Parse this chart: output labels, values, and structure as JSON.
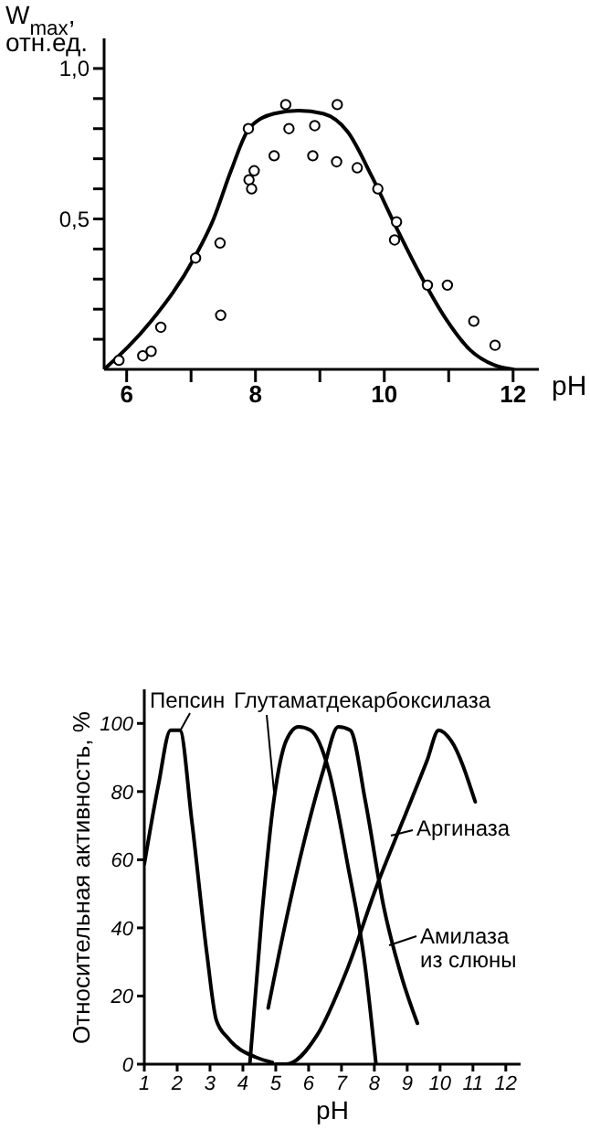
{
  "chart_data": [
    {
      "type": "scatter",
      "xlabel": "pH",
      "ylabel": "W$_{max}$, отн.ед.",
      "xlim": [
        5.65,
        12.4
      ],
      "ylim": [
        0,
        1.1
      ],
      "xticks": [
        6,
        {
          "value": 7,
          "label": null
        },
        8,
        {
          "value": 9,
          "label": null
        },
        10,
        {
          "value": 11,
          "label": null
        },
        12
      ],
      "yticks": [
        {
          "value": 0.1,
          "label": null
        },
        {
          "value": 0.2,
          "label": null
        },
        {
          "value": 0.3,
          "label": null
        },
        {
          "value": 0.4,
          "label": null
        },
        {
          "value": 0.5,
          "label": "0,5"
        },
        {
          "value": 0.6,
          "label": null
        },
        {
          "value": 0.7,
          "label": null
        },
        {
          "value": 0.8,
          "label": null
        },
        {
          "value": 0.9,
          "label": null
        },
        {
          "value": 1.0,
          "label": "1,0"
        }
      ],
      "grid": false,
      "legend": false,
      "marker": "circle",
      "series": [
        {
          "color": "#000000",
          "x": [
            5.88,
            6.25,
            6.38,
            6.53,
            7.07,
            7.45,
            7.46,
            7.89,
            7.9,
            7.94,
            7.98,
            8.29,
            8.47,
            8.52,
            8.89,
            8.92,
            9.26,
            9.27,
            9.58,
            9.9,
            10.19,
            10.16,
            10.67,
            10.98,
            11.39,
            11.72
          ],
          "values": [
            0.03,
            0.045,
            0.06,
            0.14,
            0.37,
            0.42,
            0.18,
            0.8,
            0.63,
            0.6,
            0.66,
            0.71,
            0.88,
            0.8,
            0.71,
            0.81,
            0.69,
            0.88,
            0.67,
            0.6,
            0.49,
            0.43,
            0.28,
            0.28,
            0.16,
            0.08
          ]
        },
        {
          "type": "line",
          "color": "#000000",
          "marker": "none",
          "x": [
            5.65,
            6.38,
            7.05,
            7.35,
            7.62,
            7.9,
            8.29,
            8.67,
            9.05,
            9.43,
            9.81,
            10.19,
            10.57,
            10.95,
            11.33,
            11.71,
            12.0
          ],
          "values": [
            0,
            0.16,
            0.37,
            0.5,
            0.66,
            0.8,
            0.85,
            0.86,
            0.85,
            0.79,
            0.64,
            0.47,
            0.31,
            0.17,
            0.065,
            0.014,
            0
          ]
        }
      ]
    },
    {
      "type": "line",
      "xlabel": "pH",
      "ylabel": "Относительная активность, %",
      "xlim": [
        1,
        12.45
      ],
      "ylim": [
        0,
        110
      ],
      "xticks": [
        1,
        2,
        3,
        4,
        5,
        6,
        7,
        8,
        9,
        10,
        11,
        12
      ],
      "yticks": [
        0,
        20,
        40,
        60,
        80,
        100
      ],
      "grid": false,
      "legend": "right",
      "marker": "none",
      "series": [
        {
          "name": "Пепсин",
          "color": "#000000",
          "x": [
            1,
            1.43,
            1.8,
            2.08,
            2.45,
            2.91,
            3.19,
            3.56,
            4.4,
            4.9
          ],
          "values": [
            58.7,
            82,
            98,
            98,
            71,
            32,
            13,
            7.5,
            2,
            0.5
          ]
        },
        {
          "name": "Глутаматдекарбоксилаза",
          "color": "#000000",
          "x": [
            4.21,
            4.58,
            4.95,
            5.32,
            5.69,
            6.06,
            6.62,
            7.18,
            7.73,
            8.05
          ],
          "values": [
            0,
            44,
            78,
            95,
            99,
            98,
            86,
            59,
            28,
            0
          ]
        },
        {
          "name": "Аргиназа",
          "color": "#000000",
          "x": [
            5.0,
            5.32,
            6.25,
            7.18,
            8.1,
            8.85,
            9.6,
            9.96,
            10.33,
            11.07
          ],
          "values": [
            0,
            0,
            8.4,
            28,
            53,
            71,
            89,
            98,
            95,
            77
          ]
        },
        {
          "name": "Амилаза из слюны",
          "color": "#000000",
          "x": [
            4.77,
            5.32,
            5.88,
            6.44,
            6.9,
            7.27,
            7.73,
            8.29,
            8.85,
            9.31
          ],
          "values": [
            16.5,
            42.5,
            66,
            86,
            99,
            98,
            77,
            46,
            25,
            12
          ]
        }
      ]
    }
  ]
}
